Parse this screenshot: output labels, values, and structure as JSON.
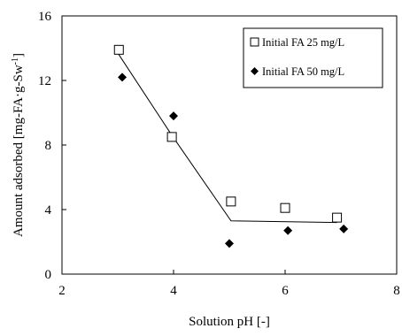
{
  "chart_data": {
    "type": "scatter",
    "xlabel": "Solution pH [-]",
    "ylabel_main": "Amount adsorbed [mg-FA·g-Sw",
    "ylabel_sup": "-1",
    "ylabel_end": "]",
    "xlim": [
      2,
      8
    ],
    "ylim": [
      0,
      16
    ],
    "x_ticks": [
      2,
      4,
      6,
      8
    ],
    "y_ticks": [
      0,
      4,
      8,
      12,
      16
    ],
    "grid": false,
    "legend_position": "top-right",
    "series": [
      {
        "name": "Initial FA 25 mg/L",
        "marker": "open-square",
        "color": "#000000",
        "x": [
          3.02,
          3.97,
          5.03,
          6.0,
          6.93
        ],
        "y": [
          13.9,
          8.5,
          4.5,
          4.1,
          3.5
        ]
      },
      {
        "name": "Initial FA 50 mg/L",
        "marker": "filled-diamond",
        "color": "#000000",
        "x": [
          3.08,
          4.0,
          5.0,
          6.05,
          7.05
        ],
        "y": [
          12.2,
          9.8,
          1.9,
          2.7,
          2.8
        ]
      }
    ],
    "trend_line": {
      "x": [
        3.02,
        3.97,
        5.03,
        6.93
      ],
      "y": [
        13.6,
        8.6,
        3.3,
        3.2
      ]
    }
  }
}
